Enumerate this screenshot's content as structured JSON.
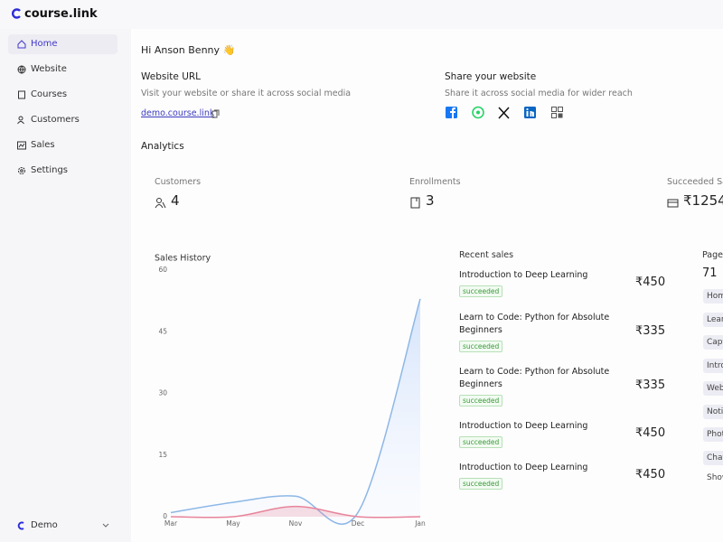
{
  "brand": "course.link",
  "nav": [
    "Home",
    "Website",
    "Courses",
    "Customers",
    "Sales",
    "Settings"
  ],
  "account": "Demo",
  "greeting": "Hi Anson Benny 👋",
  "website": {
    "title": "Website URL",
    "subtitle": "Visit your website or share it across social media",
    "url": "demo.course.link"
  },
  "share": {
    "title": "Share your website",
    "subtitle": "Share it across social media for wider reach"
  },
  "analytics": {
    "title": "Analytics",
    "stats": [
      {
        "label": "Customers",
        "value": "4"
      },
      {
        "label": "Enrollments",
        "value": "3"
      },
      {
        "label": "Succeeded Sales",
        "value": "₹1254"
      }
    ]
  },
  "recent_sales": {
    "title": "Recent sales",
    "items": [
      {
        "name": "Introduction to Deep Learning",
        "status": "succeeded",
        "amount": "₹450"
      },
      {
        "name": "Learn to Code: Python for Absolute Beginners",
        "status": "succeeded",
        "amount": "₹335"
      },
      {
        "name": "Learn to Code: Python for Absolute Beginners",
        "status": "succeeded",
        "amount": "₹335"
      },
      {
        "name": "Introduction to Deep Learning",
        "status": "succeeded",
        "amount": "₹450"
      },
      {
        "name": "Introduction to Deep Learning",
        "status": "succeeded",
        "amount": "₹450"
      }
    ]
  },
  "pages": {
    "title": "Pages",
    "count": "71",
    "tags": [
      "Home",
      "Learn",
      "Capture",
      "Intro",
      "Website",
      "Notice",
      "Photos",
      "Chat",
      "Show more"
    ]
  },
  "chart_data": {
    "type": "line",
    "title": "Sales History",
    "categories": [
      "Mar",
      "May",
      "Nov",
      "Dec",
      "Jan"
    ],
    "series": [
      {
        "color": "#8db7e6",
        "values": [
          1,
          3.5,
          5,
          1,
          53
        ]
      },
      {
        "color": "#e8849a",
        "values": [
          0,
          0,
          2.5,
          0,
          0
        ]
      }
    ],
    "ylim": [
      0,
      60
    ],
    "yticks": [
      0,
      15,
      30,
      45,
      60
    ],
    "area": true
  }
}
